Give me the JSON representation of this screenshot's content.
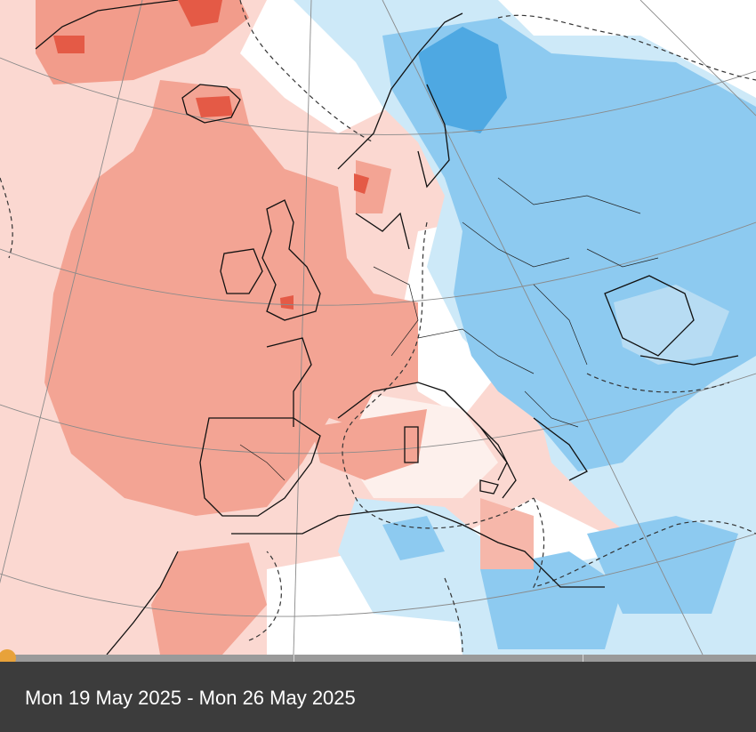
{
  "caption": {
    "date_range": "Mon 19 May 2025 - Mon 26 May 2025"
  },
  "legend_colors": {
    "warm_light": "#fbd5cd",
    "warm_medium": "#f29c8b",
    "warm_strong": "#e45a46",
    "neutral": "#ffffff",
    "cool_light": "#cde9f8",
    "cool_medium": "#8dcaf0",
    "cool_strong": "#4ea8e2",
    "coastline": "#111111"
  },
  "timeline": {
    "position": 0.0,
    "handle_icon": "slider-handle-icon"
  }
}
